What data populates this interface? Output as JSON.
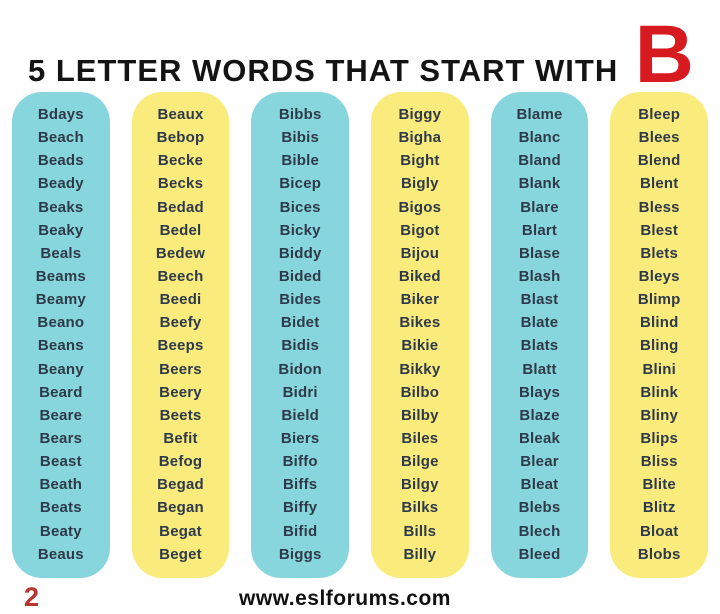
{
  "title": {
    "text": "5 LETTER WORDS THAT START WITH",
    "letter": "B"
  },
  "colors": {
    "cyan": "#87d6dd",
    "yellow": "#faeb7d",
    "red": "#d71920",
    "page_number_red": "#b5342f",
    "word_text": "#2e3a49"
  },
  "columns": [
    {
      "color": "cyan",
      "words": [
        "Bdays",
        "Beach",
        "Beads",
        "Beady",
        "Beaks",
        "Beaky",
        "Beals",
        "Beams",
        "Beamy",
        "Beano",
        "Beans",
        "Beany",
        "Beard",
        "Beare",
        "Bears",
        "Beast",
        "Beath",
        "Beats",
        "Beaty",
        "Beaus"
      ]
    },
    {
      "color": "yellow",
      "words": [
        "Beaux",
        "Bebop",
        "Becke",
        "Becks",
        "Bedad",
        "Bedel",
        "Bedew",
        "Beech",
        "Beedi",
        "Beefy",
        "Beeps",
        "Beers",
        "Beery",
        "Beets",
        "Befit",
        "Befog",
        "Begad",
        "Began",
        "Begat",
        "Beget"
      ]
    },
    {
      "color": "cyan",
      "words": [
        "Bibbs",
        "Bibis",
        "Bible",
        "Bicep",
        "Bices",
        "Bicky",
        "Biddy",
        "Bided",
        "Bides",
        "Bidet",
        "Bidis",
        "Bidon",
        "Bidri",
        "Bield",
        "Biers",
        "Biffo",
        "Biffs",
        "Biffy",
        "Bifid",
        "Biggs"
      ]
    },
    {
      "color": "yellow",
      "words": [
        "Biggy",
        "Bigha",
        "Bight",
        "Bigly",
        "Bigos",
        "Bigot",
        "Bijou",
        "Biked",
        "Biker",
        "Bikes",
        "Bikie",
        "Bikky",
        "Bilbo",
        "Bilby",
        "Biles",
        "Bilge",
        "Bilgy",
        "Bilks",
        "Bills",
        "Billy"
      ]
    },
    {
      "color": "cyan",
      "words": [
        "Blame",
        "Blanc",
        "Bland",
        "Blank",
        "Blare",
        "Blart",
        "Blase",
        "Blash",
        "Blast",
        "Blate",
        "Blats",
        "Blatt",
        "Blays",
        "Blaze",
        "Bleak",
        "Blear",
        "Bleat",
        "Blebs",
        "Blech",
        "Bleed"
      ]
    },
    {
      "color": "yellow",
      "words": [
        "Bleep",
        "Blees",
        "Blend",
        "Blent",
        "Bless",
        "Blest",
        "Blets",
        "Bleys",
        "Blimp",
        "Blind",
        "Bling",
        "Blini",
        "Blink",
        "Bliny",
        "Blips",
        "Bliss",
        "Blite",
        "Blitz",
        "Bloat",
        "Blobs"
      ]
    }
  ],
  "footer": {
    "page_number": "2",
    "website": "www.eslforums.com"
  }
}
